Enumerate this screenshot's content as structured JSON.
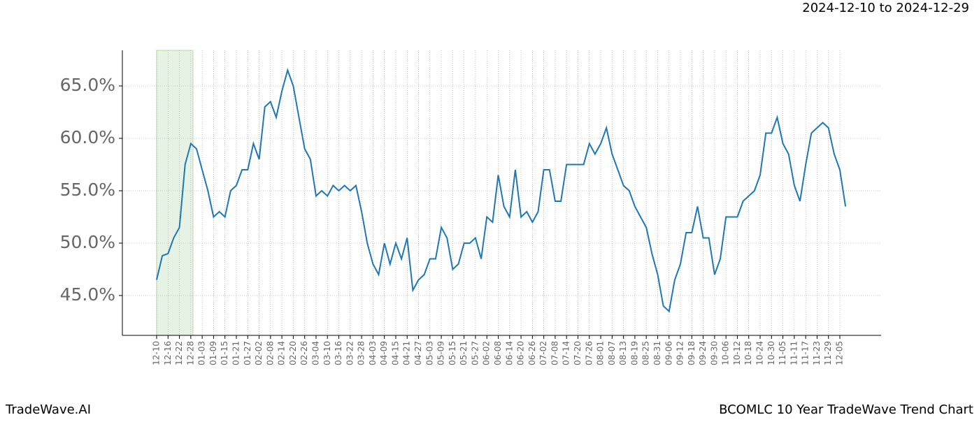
{
  "chart_data": {
    "type": "line",
    "subtitle": "2024-12-10 to 2024-12-29",
    "brand": "TradeWave.AI",
    "title": "BCOMLC 10 Year TradeWave Trend Chart",
    "categories": [
      "12-10",
      null,
      "12-16",
      null,
      "12-22",
      null,
      "12-28",
      null,
      "01-03",
      null,
      "01-09",
      null,
      "01-15",
      null,
      "01-21",
      null,
      "01-27",
      null,
      "02-02",
      null,
      "02-08",
      null,
      "02-14",
      null,
      "02-20",
      null,
      "02-26",
      null,
      "03-04",
      null,
      "03-10",
      null,
      "03-16",
      null,
      "03-22",
      null,
      "03-28",
      null,
      "04-03",
      null,
      "04-09",
      null,
      "04-15",
      null,
      "04-21",
      null,
      "04-27",
      null,
      "05-03",
      null,
      "05-09",
      null,
      "05-15",
      null,
      "05-21",
      null,
      "05-27",
      null,
      "06-02",
      null,
      "06-08",
      null,
      "06-14",
      null,
      "06-20",
      null,
      "06-26",
      null,
      "07-02",
      null,
      "07-08",
      null,
      "07-14",
      null,
      "07-20",
      null,
      "07-26",
      null,
      "08-01",
      null,
      "08-07",
      null,
      "08-13",
      null,
      "08-19",
      null,
      "08-25",
      null,
      "08-31",
      null,
      "09-06",
      null,
      "09-12",
      null,
      "09-18",
      null,
      "09-24",
      null,
      "09-30",
      null,
      "10-06",
      null,
      "10-12",
      null,
      "10-18",
      null,
      "10-24",
      null,
      "10-30",
      null,
      "11-05",
      null,
      "11-11",
      null,
      "11-17",
      null,
      "11-23",
      null,
      "11-29",
      null,
      "12-05",
      null
    ],
    "series": [
      {
        "color": "#1f77b4",
        "values": [
          46.5,
          48.8,
          49.0,
          50.5,
          51.5,
          57.5,
          59.5,
          59.0,
          57.0,
          55.0,
          52.5,
          53.0,
          52.5,
          55.0,
          55.5,
          57.0,
          57.0,
          59.5,
          58.0,
          63.0,
          63.5,
          62.0,
          64.5,
          66.5,
          65.0,
          62.0,
          59.0,
          58.0,
          54.5,
          55.0,
          54.5,
          55.5,
          55.0,
          55.5,
          55.0,
          55.5,
          53.0,
          50.0,
          48.0,
          47.0,
          50.0,
          48.0,
          50.0,
          48.5,
          50.5,
          45.5,
          46.5,
          47.0,
          48.5,
          48.5,
          51.5,
          50.5,
          47.5,
          48.0,
          50.0,
          50.0,
          50.5,
          48.5,
          52.5,
          52.0,
          56.5,
          53.5,
          52.5,
          57.0,
          52.5,
          53.0,
          52.0,
          53.0,
          57.0,
          57.0,
          54.0,
          54.0,
          57.5,
          57.5,
          57.5,
          57.5,
          59.5,
          58.5,
          59.5,
          61.0,
          58.5,
          57.0,
          55.5,
          55.0,
          53.5,
          52.5,
          51.5,
          49.0,
          47.0,
          44.0,
          43.5,
          46.5,
          48.0,
          51.0,
          51.0,
          53.5,
          50.5,
          50.5,
          47.0,
          48.5,
          52.5,
          52.5,
          52.5,
          54.0,
          54.5,
          55.0,
          56.5,
          60.5,
          60.5,
          62.0,
          59.5,
          58.5,
          55.5,
          54.0,
          57.5,
          60.5,
          61.0,
          61.5,
          61.0,
          58.5,
          57.0,
          53.5
        ]
      }
    ],
    "ylim": [
      41.2,
      68.4
    ],
    "yticks": [
      {
        "value": 45,
        "label": "45.0%"
      },
      {
        "value": 50,
        "label": "50.0%"
      },
      {
        "value": 55,
        "label": "55.0%"
      },
      {
        "value": 60,
        "label": "60.0%"
      },
      {
        "value": 65,
        "label": "65.0%"
      }
    ],
    "grid": true
  }
}
